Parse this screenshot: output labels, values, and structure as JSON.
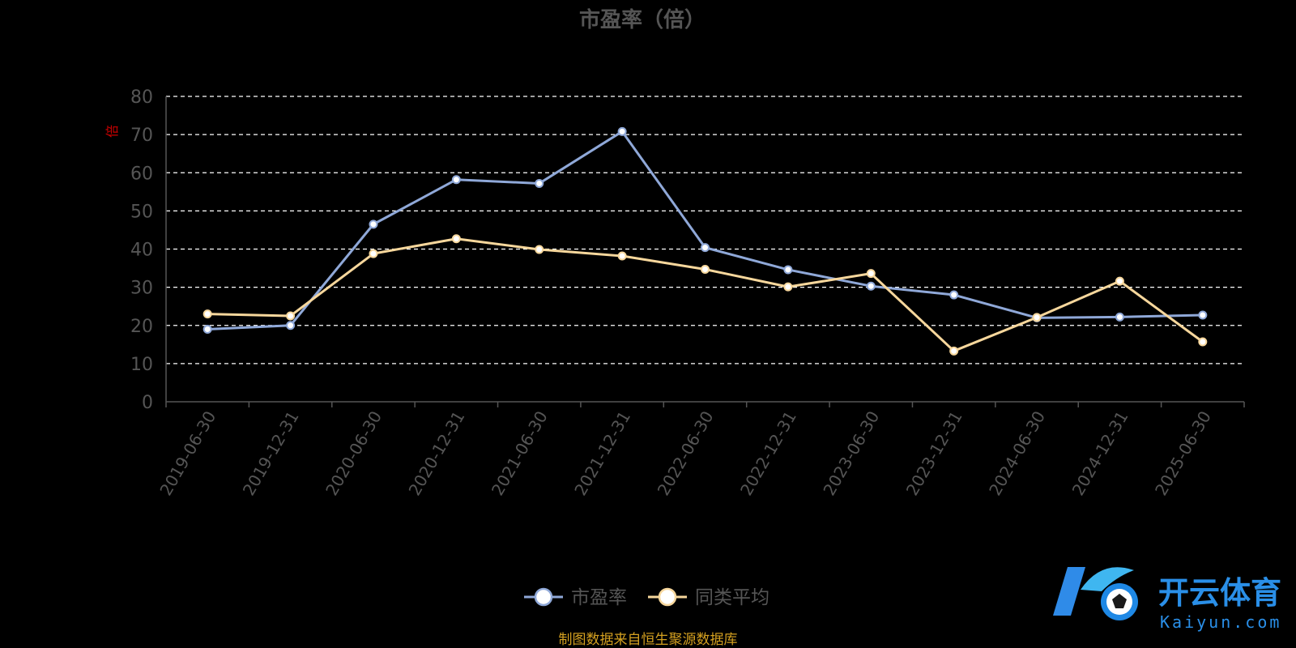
{
  "chart_data": {
    "type": "line",
    "title": "市盈率（倍）",
    "ylabel": "倍",
    "ylim": [
      0,
      80
    ],
    "yticks": [
      "0",
      "10",
      "20",
      "30",
      "40",
      "50",
      "60",
      "70",
      "80"
    ],
    "categories": [
      "2019-06-30",
      "2019-12-31",
      "2020-06-30",
      "2020-12-31",
      "2021-06-30",
      "2021-12-31",
      "2022-06-30",
      "2022-12-31",
      "2023-06-30",
      "2023-12-31",
      "2024-06-30",
      "2024-12-31",
      "2025-06-30"
    ],
    "series": [
      {
        "name": "市盈率",
        "color": "#8fa8d8",
        "values": [
          19.0,
          20.0,
          46.5,
          58.2,
          57.2,
          70.8,
          40.4,
          34.6,
          30.3,
          28.0,
          22.0,
          22.2,
          22.7
        ]
      },
      {
        "name": "同类平均",
        "color": "#f7d79c",
        "values": [
          23.0,
          22.5,
          38.8,
          42.7,
          39.9,
          38.2,
          34.7,
          30.1,
          33.6,
          13.3,
          22.1,
          31.6,
          15.7
        ]
      }
    ],
    "grid": true,
    "legend_position": "bottom-center"
  },
  "source_note": "制图数据来自恒生聚源数据库",
  "watermark": {
    "name": "开云体育",
    "domain": "Kaiyun.com"
  }
}
